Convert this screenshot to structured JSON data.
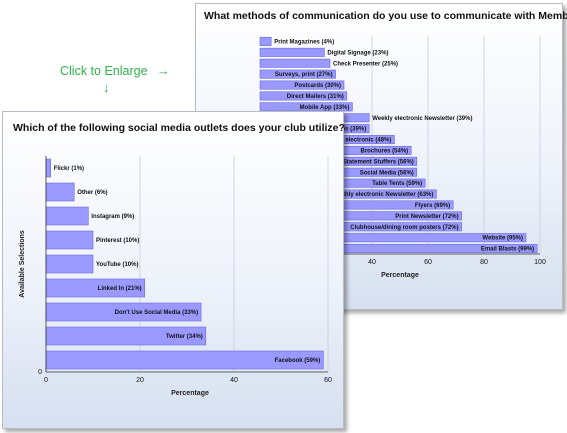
{
  "enlarge_link": {
    "label": "Click to Enlarge",
    "arrow_right": "→",
    "arrow_down": "↓"
  },
  "chart_data": [
    {
      "type": "bar",
      "orientation": "horizontal",
      "title": "What methods of communication do you use to communicate with Members?",
      "xlabel": "Percentage",
      "ylabel": "",
      "xlim": [
        0,
        100
      ],
      "xticks": [
        40,
        60,
        80,
        100
      ],
      "grid": true,
      "bar_color": "#9999ff",
      "categories": [
        "Print Magazines (4%)",
        "Digital Signage (23%)",
        "Check Presenter (25%)",
        "Surveys, print (27%)",
        "Postcards (30%)",
        "Direct Mailers (31%)",
        "Mobile App (33%)",
        "Weekly electronic Newsletter (39%)",
        "Reservation confirmations (39%)",
        "Surveys, electronic (48%)",
        "Brochures (54%)",
        "Statement Stuffers (56%)",
        "Social Media (56%)",
        "Table Tents (59%)",
        "Monthly electronic Newsletter (63%)",
        "Flyers (69%)",
        "Print Newsletter (72%)",
        "Clubhouse/dining room posters (72%)",
        "Website (95%)",
        "Email Blasts (99%)"
      ],
      "values": [
        4,
        23,
        25,
        27,
        30,
        31,
        33,
        39,
        39,
        48,
        54,
        56,
        56,
        59,
        63,
        69,
        72,
        72,
        95,
        99
      ]
    },
    {
      "type": "bar",
      "orientation": "horizontal",
      "title": "Which of the following social media outlets does your club utilize?",
      "xlabel": "Percentage",
      "ylabel": "Available Selections",
      "xlim": [
        0,
        60
      ],
      "xticks": [
        0,
        20,
        40,
        60
      ],
      "yticks": [
        "0"
      ],
      "grid": true,
      "bar_color": "#9999ff",
      "categories": [
        "Flickr (1%)",
        "Other (6%)",
        "Instagram (9%)",
        "Pinterest (10%)",
        "YouTube (10%)",
        "Linked In (21%)",
        "Don't Use Social Media (33%)",
        "Twitter (34%)",
        "Facebook (59%)"
      ],
      "values": [
        1,
        6,
        9,
        10,
        10,
        21,
        33,
        34,
        59
      ]
    }
  ]
}
